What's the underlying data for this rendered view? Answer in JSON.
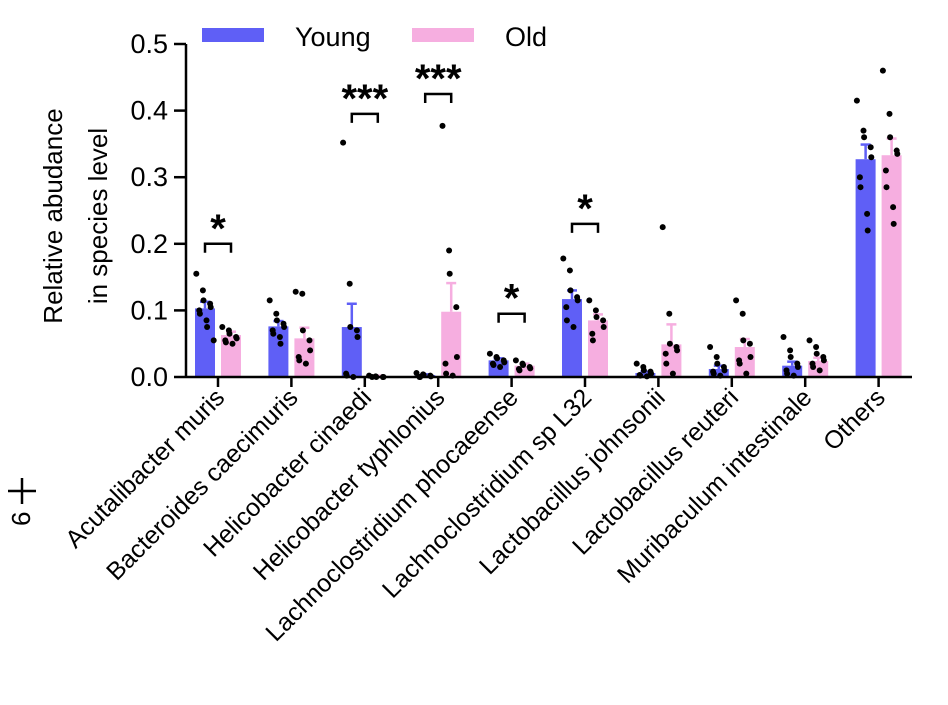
{
  "chart_data": {
    "type": "bar",
    "title": "",
    "xlabel": "",
    "ylabel_lines": [
      "Relative abudance",
      "in species level"
    ],
    "ylim": [
      0,
      0.5
    ],
    "yticks": [
      "0.0",
      "0.1",
      "0.2",
      "0.3",
      "0.4",
      "0.5"
    ],
    "ytick_values": [
      0,
      0.1,
      0.2,
      0.3,
      0.4,
      0.5
    ],
    "categories": [
      "Acutalibacter muris",
      "Bacteroides caecimuris",
      "Helicobacter cinaedi",
      "Helicobacter typhlonius",
      "Lachnoclostridium phocaeense",
      "Lachnoclostridium sp L32",
      "Lactobacillus johnsonii",
      "Lactobacillus reuteri",
      "Muribaculum intestinale",
      "Others"
    ],
    "legend_position": "top",
    "series": [
      {
        "name": "Young",
        "color": "#5f5ff6",
        "values": [
          0.103,
          0.076,
          0.075,
          0.003,
          0.025,
          0.117,
          0.006,
          0.012,
          0.017,
          0.327
        ],
        "errors": [
          0.01,
          0.008,
          0.035,
          0.001,
          0.003,
          0.013,
          0.002,
          0.005,
          0.006,
          0.022
        ],
        "points": [
          [
            0.155,
            0.13,
            0.115,
            0.11,
            0.105,
            0.1,
            0.095,
            0.085,
            0.075,
            0.055
          ],
          [
            0.115,
            0.095,
            0.085,
            0.08,
            0.075,
            0.07,
            0.065,
            0.06,
            0.05
          ],
          [
            0.352,
            0.14,
            0.075,
            0.07,
            0.06,
            0.005,
            0.002,
            0.0
          ],
          [
            0.006,
            0.004,
            0.003,
            0.002,
            0.001,
            0.0,
            0.0
          ],
          [
            0.035,
            0.03,
            0.028,
            0.025,
            0.022,
            0.02,
            0.018,
            0.015
          ],
          [
            0.178,
            0.16,
            0.13,
            0.12,
            0.115,
            0.105,
            0.085,
            0.075
          ],
          [
            0.02,
            0.015,
            0.01,
            0.008,
            0.005,
            0.003,
            0.002,
            0.001
          ],
          [
            0.045,
            0.03,
            0.02,
            0.015,
            0.01,
            0.008,
            0.005,
            0.002
          ],
          [
            0.06,
            0.04,
            0.03,
            0.02,
            0.015,
            0.01,
            0.005,
            0.002
          ],
          [
            0.415,
            0.37,
            0.36,
            0.345,
            0.33,
            0.3,
            0.285,
            0.245,
            0.22
          ]
        ]
      },
      {
        "name": "Old",
        "color": "#f6aee0",
        "values": [
          0.063,
          0.058,
          0.001,
          0.098,
          0.017,
          0.085,
          0.049,
          0.045,
          0.024,
          0.333
        ],
        "errors": [
          0.005,
          0.016,
          0.001,
          0.043,
          0.003,
          0.009,
          0.03,
          0.012,
          0.005,
          0.025
        ],
        "points": [
          [
            0.075,
            0.07,
            0.065,
            0.06,
            0.058,
            0.055,
            0.052,
            0.05
          ],
          [
            0.128,
            0.125,
            0.07,
            0.055,
            0.04,
            0.03,
            0.025,
            0.02
          ],
          [
            0.002,
            0.001,
            0.0,
            0.0,
            0.0,
            0.0
          ],
          [
            0.377,
            0.19,
            0.155,
            0.105,
            0.03,
            0.02,
            0.005,
            0.002
          ],
          [
            0.025,
            0.02,
            0.018,
            0.015,
            0.013,
            0.012,
            0.01
          ],
          [
            0.115,
            0.1,
            0.09,
            0.085,
            0.075,
            0.065,
            0.055
          ],
          [
            0.225,
            0.095,
            0.05,
            0.045,
            0.04,
            0.035,
            0.02,
            0.005
          ],
          [
            0.115,
            0.095,
            0.055,
            0.05,
            0.03,
            0.025,
            0.02,
            0.005
          ],
          [
            0.055,
            0.045,
            0.035,
            0.03,
            0.025,
            0.02,
            0.015,
            0.01
          ],
          [
            0.46,
            0.395,
            0.36,
            0.34,
            0.335,
            0.31,
            0.285,
            0.255,
            0.23
          ]
        ]
      }
    ],
    "annotations": [
      {
        "category_index": 0,
        "label": "*",
        "bracket_value": 0.2
      },
      {
        "category_index": 2,
        "label": "***",
        "bracket_value": 0.395
      },
      {
        "category_index": 3,
        "label": "***",
        "bracket_value": 0.425
      },
      {
        "category_index": 4,
        "label": "*",
        "bracket_value": 0.095
      },
      {
        "category_index": 5,
        "label": "*",
        "bracket_value": 0.23
      }
    ]
  },
  "corner_text": "6"
}
